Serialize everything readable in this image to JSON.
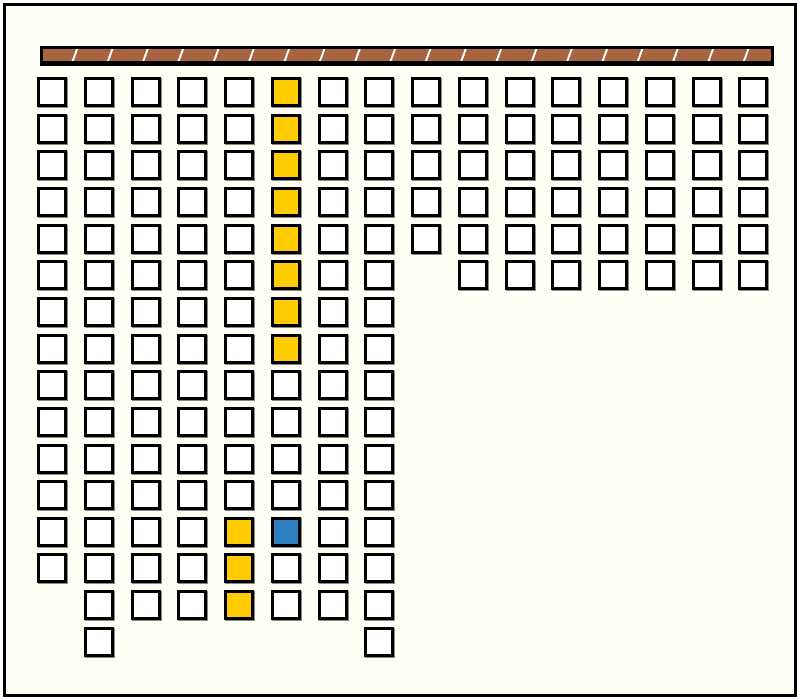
{
  "colors": {
    "background": "#FFFFF5",
    "empty": "#FFFFFF",
    "yellow": "#FFCC00",
    "blue": "#2E7FBF",
    "bar": "#A8643E"
  },
  "grid": {
    "column_heights": [
      14,
      16,
      15,
      15,
      15,
      15,
      15,
      16,
      5,
      6,
      6,
      6,
      6,
      6,
      6,
      6
    ],
    "filled": [
      {
        "col": 5,
        "row": 0,
        "color": "yellow"
      },
      {
        "col": 5,
        "row": 1,
        "color": "yellow"
      },
      {
        "col": 5,
        "row": 2,
        "color": "yellow"
      },
      {
        "col": 5,
        "row": 3,
        "color": "yellow"
      },
      {
        "col": 5,
        "row": 4,
        "color": "yellow"
      },
      {
        "col": 5,
        "row": 5,
        "color": "yellow"
      },
      {
        "col": 5,
        "row": 6,
        "color": "yellow"
      },
      {
        "col": 5,
        "row": 7,
        "color": "yellow"
      },
      {
        "col": 4,
        "row": 12,
        "color": "yellow"
      },
      {
        "col": 4,
        "row": 13,
        "color": "yellow"
      },
      {
        "col": 4,
        "row": 14,
        "color": "yellow"
      },
      {
        "col": 5,
        "row": 12,
        "color": "blue"
      }
    ]
  }
}
